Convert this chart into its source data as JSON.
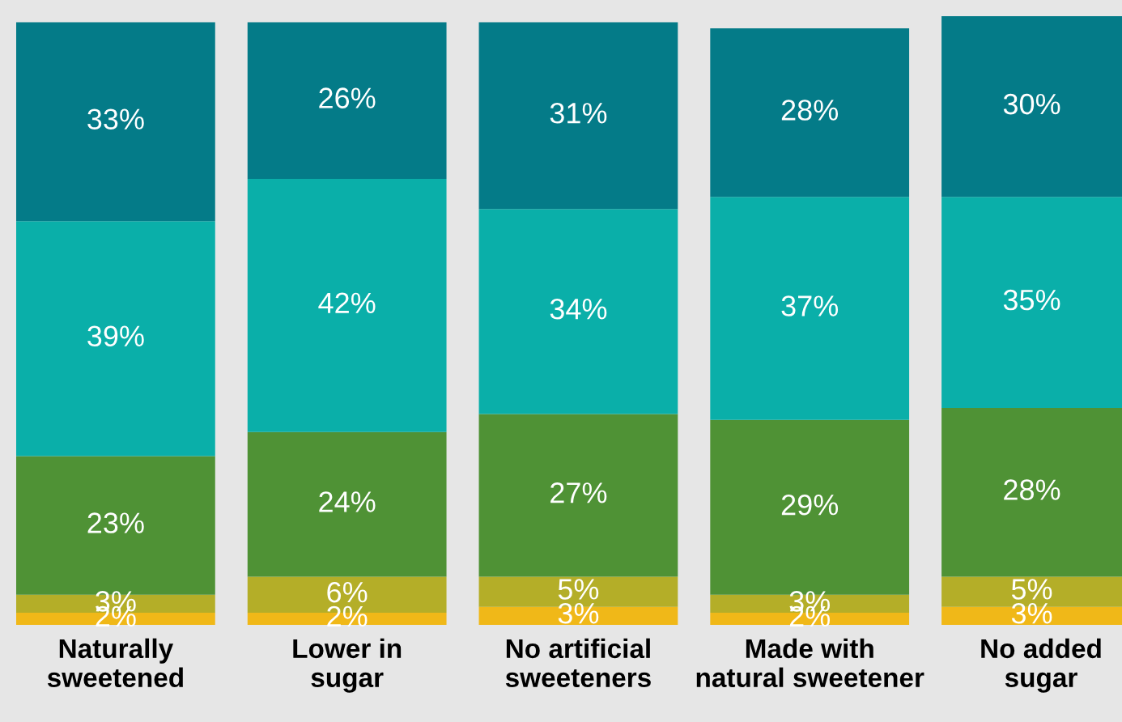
{
  "chart_data": {
    "type": "bar",
    "stacked": true,
    "grid": false,
    "legend": false,
    "tick_labels": "x",
    "categories": [
      "Naturally\nsweetened",
      "Lower in\nsugar",
      "No artificial\nsweeteners",
      "Made with\nnatural sweetener",
      "No added\nsugar"
    ],
    "series": [
      {
        "color": "#f0b818",
        "values": [
          2,
          2,
          3,
          2,
          3
        ],
        "value_labels": [
          "2%",
          "2%",
          "3%",
          "2%",
          "3%"
        ]
      },
      {
        "color": "#b4ae28",
        "values": [
          3,
          6,
          5,
          3,
          5
        ],
        "value_labels": [
          "3%",
          "6%",
          "5%",
          "3%",
          "5%"
        ]
      },
      {
        "color": "#4f9235",
        "values": [
          23,
          24,
          27,
          29,
          28
        ],
        "value_labels": [
          "23%",
          "24%",
          "27%",
          "29%",
          "28%"
        ]
      },
      {
        "color": "#0aafa9",
        "values": [
          39,
          42,
          34,
          37,
          35
        ],
        "value_labels": [
          "39%",
          "42%",
          "34%",
          "37%",
          "35%"
        ]
      },
      {
        "color": "#047b88",
        "values": [
          33,
          26,
          31,
          28,
          30
        ],
        "value_labels": [
          "33%",
          "26%",
          "31%",
          "28%",
          "30%"
        ]
      }
    ]
  }
}
